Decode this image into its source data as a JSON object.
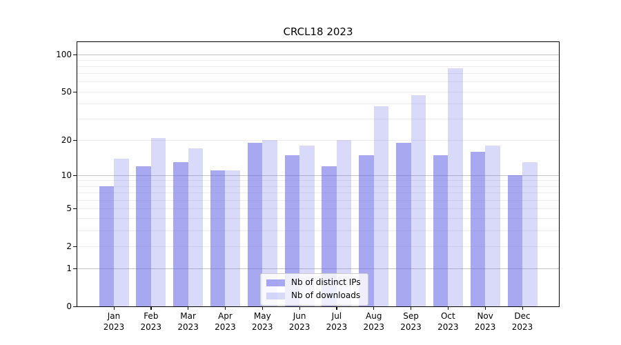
{
  "title": "CRCL18 2023",
  "colors": {
    "bar_distinct_ips": "rgba(102,102,230,0.57)",
    "bar_downloads": "rgba(102,102,230,0.25)",
    "axis": "#000000",
    "grid_major": "#c3c3c3",
    "grid_minor": "#ececec",
    "legend_border": "#cccccc",
    "legend_background": "rgba(255,255,255,0.8)",
    "text": "#000000"
  },
  "chart_data": {
    "type": "bar",
    "title": "CRCL18 2023",
    "categories": [
      "Jan 2023",
      "Feb 2023",
      "Mar 2023",
      "Apr 2023",
      "May 2023",
      "Jun 2023",
      "Jul 2023",
      "Aug 2023",
      "Sep 2023",
      "Oct 2023",
      "Nov 2023",
      "Dec 2023"
    ],
    "series": [
      {
        "name": "Nb of distinct IPs",
        "values": [
          8,
          12,
          13,
          11,
          19,
          15,
          12,
          15,
          19,
          15,
          16,
          10
        ]
      },
      {
        "name": "Nb of downloads",
        "values": [
          14,
          21,
          17,
          11,
          20,
          18,
          20,
          38,
          47,
          77,
          18,
          13
        ]
      }
    ],
    "xlabel": "",
    "ylabel": "",
    "yscale": "log1p",
    "ylim": [
      0,
      126
    ],
    "yticks": [
      100,
      50,
      20,
      10,
      5,
      2,
      1,
      0
    ],
    "grid_major_lines": [
      1,
      10,
      100
    ],
    "grid_minor_lines": [
      2,
      3,
      4,
      5,
      6,
      7,
      8,
      9,
      20,
      30,
      40,
      50,
      60,
      70,
      80,
      90
    ],
    "grid": "horizontal",
    "legend_position": "lower center"
  }
}
